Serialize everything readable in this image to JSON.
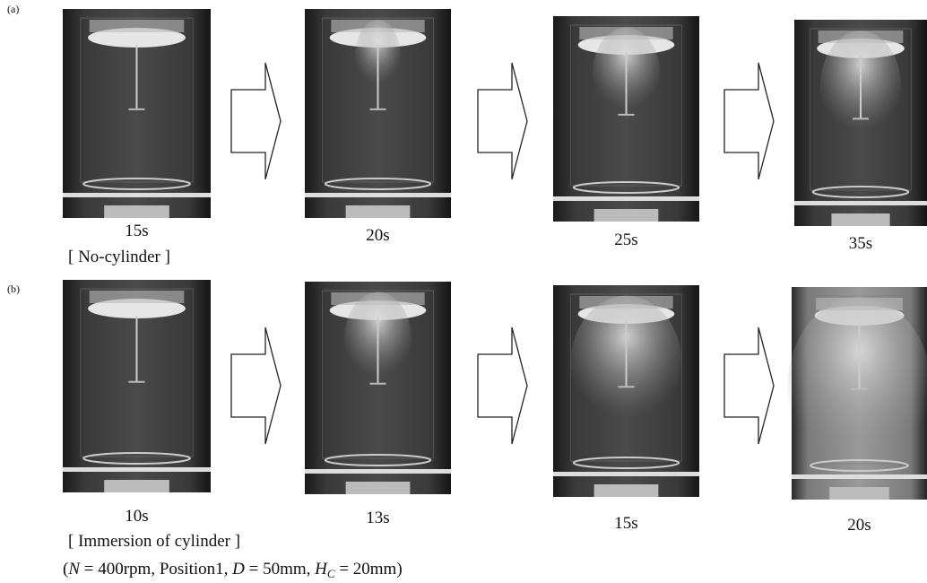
{
  "rows": [
    {
      "label": "(a)",
      "frames": [
        "15s",
        "20s",
        "25s",
        "35s"
      ],
      "caption": "[ No-cylinder ]"
    },
    {
      "label": "(b)",
      "frames": [
        "10s",
        "13s",
        "15s",
        "20s"
      ],
      "caption": "[ Immersion of cylinder ]"
    }
  ],
  "conditions": [
    "(",
    "N",
    " = 400rpm, Position1, ",
    "D",
    " = 50mm, ",
    "H",
    "C",
    " = 20mm)"
  ]
}
